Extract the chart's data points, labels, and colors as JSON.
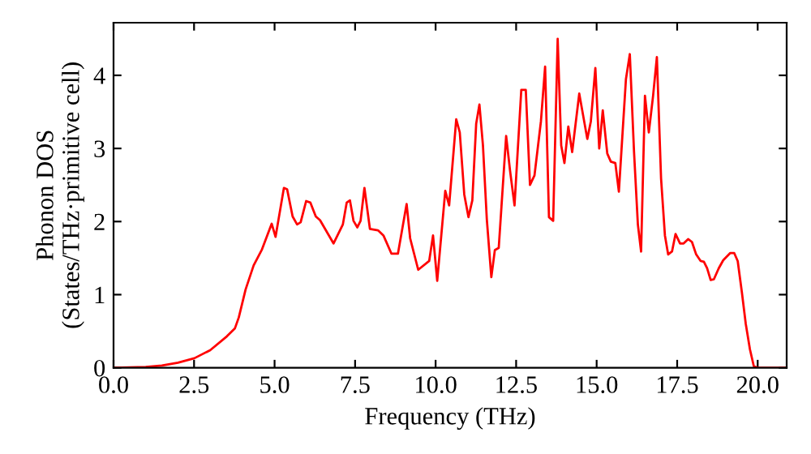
{
  "chart_data": {
    "type": "line",
    "xlabel": "Frequency (THz)",
    "ylabel": "Phonon DOS\n(States/THz·primitive cell)",
    "xlim": [
      0,
      20.9
    ],
    "ylim": [
      0,
      4.72
    ],
    "xticks": [
      {
        "value": 0,
        "label": "0.0"
      },
      {
        "value": 2.5,
        "label": "2.5"
      },
      {
        "value": 5,
        "label": "5.0"
      },
      {
        "value": 7.5,
        "label": "7.5"
      },
      {
        "value": 10,
        "label": "10.0"
      },
      {
        "value": 12.5,
        "label": "12.5"
      },
      {
        "value": 15,
        "label": "15.0"
      },
      {
        "value": 17.5,
        "label": "17.5"
      },
      {
        "value": 20,
        "label": "20.0"
      }
    ],
    "yticks": [
      0,
      1,
      2,
      3,
      4
    ],
    "grid": false,
    "marker": "none",
    "line_style": "solid",
    "series": [
      {
        "color": "#ff0000",
        "x": [
          0,
          1,
          1.5,
          2,
          2.51,
          3.0,
          3.52,
          3.77,
          3.89,
          4.1,
          4.35,
          4.61,
          4.91,
          5.03,
          5.29,
          5.39,
          5.56,
          5.7,
          5.81,
          5.98,
          6.11,
          6.28,
          6.41,
          6.83,
          7.12,
          7.24,
          7.34,
          7.45,
          7.57,
          7.67,
          7.79,
          7.96,
          8.21,
          8.38,
          8.63,
          8.83,
          9.1,
          9.21,
          9.46,
          9.8,
          9.92,
          10.05,
          10.3,
          10.42,
          10.64,
          10.75,
          10.89,
          11.02,
          11.14,
          11.26,
          11.36,
          11.47,
          11.59,
          11.73,
          11.84,
          11.96,
          12.19,
          12.31,
          12.45,
          12.66,
          12.8,
          12.93,
          13.07,
          13.27,
          13.4,
          13.52,
          13.65,
          13.79,
          13.9,
          14.0,
          14.12,
          14.24,
          14.46,
          14.71,
          14.82,
          14.96,
          15.08,
          15.19,
          15.33,
          15.44,
          15.58,
          15.69,
          15.91,
          16.03,
          16.16,
          16.28,
          16.38,
          16.5,
          16.62,
          16.75,
          16.87,
          17.0,
          17.12,
          17.22,
          17.34,
          17.45,
          17.59,
          17.7,
          17.84,
          17.96,
          18.09,
          18.23,
          18.33,
          18.43,
          18.54,
          18.64,
          18.79,
          18.93,
          19.15,
          19.27,
          19.38,
          19.51,
          19.63,
          19.76,
          19.88,
          20.0,
          20.9
        ],
        "values": [
          0,
          0.01,
          0.03,
          0.07,
          0.13,
          0.24,
          0.43,
          0.54,
          0.69,
          1.07,
          1.4,
          1.62,
          1.97,
          1.79,
          2.46,
          2.44,
          2.07,
          1.96,
          1.99,
          2.28,
          2.26,
          2.07,
          2.02,
          1.7,
          1.96,
          2.26,
          2.29,
          2.01,
          1.92,
          2.01,
          2.46,
          1.9,
          1.88,
          1.81,
          1.56,
          1.56,
          2.24,
          1.77,
          1.34,
          1.46,
          1.81,
          1.19,
          2.42,
          2.22,
          3.4,
          3.22,
          2.37,
          2.06,
          2.29,
          3.34,
          3.6,
          3.04,
          2.03,
          1.24,
          1.61,
          1.64,
          3.17,
          2.7,
          2.22,
          3.8,
          3.8,
          2.5,
          2.63,
          3.37,
          4.12,
          2.06,
          2.01,
          4.5,
          3.04,
          2.8,
          3.3,
          2.95,
          3.75,
          3.13,
          3.37,
          4.1,
          3.0,
          3.52,
          2.93,
          2.82,
          2.8,
          2.41,
          3.95,
          4.29,
          2.96,
          1.96,
          1.59,
          3.72,
          3.22,
          3.71,
          4.25,
          2.59,
          1.81,
          1.55,
          1.59,
          1.83,
          1.7,
          1.7,
          1.76,
          1.72,
          1.55,
          1.46,
          1.45,
          1.36,
          1.2,
          1.21,
          1.36,
          1.47,
          1.57,
          1.57,
          1.46,
          1.03,
          0.6,
          0.25,
          0.02,
          0,
          0
        ]
      }
    ]
  }
}
